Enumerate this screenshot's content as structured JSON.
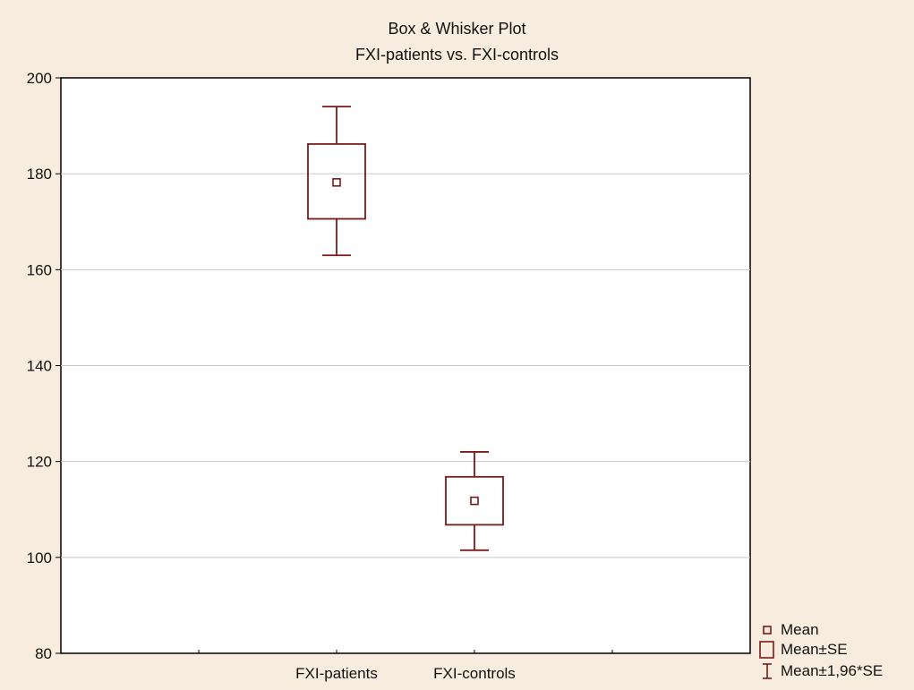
{
  "chart_data": {
    "type": "box",
    "title": "Box & Whisker Plot",
    "subtitle": "FXI-patients vs. FXI-controls",
    "categories": [
      "FXI-patients",
      "FXI-controls"
    ],
    "series": [
      {
        "category": "FXI-patients",
        "mean": 178.2,
        "se_low": 170.6,
        "se_high": 186.2,
        "ci_low": 163.0,
        "ci_high": 194.0
      },
      {
        "category": "FXI-controls",
        "mean": 111.8,
        "se_low": 106.8,
        "se_high": 116.8,
        "ci_low": 101.5,
        "ci_high": 122.0
      }
    ],
    "ylim": [
      80,
      200
    ],
    "yticks": [
      80,
      100,
      120,
      140,
      160,
      180,
      200
    ],
    "grid": true,
    "legend": {
      "placement": "bottom-right",
      "entries": [
        "Mean",
        "Mean±SE",
        "Mean±1,96*SE"
      ]
    },
    "colors": {
      "marker": "#7b1a1a",
      "background": "#f7ecde",
      "plot_area": "#ffffff",
      "grid": "#c8c8c8"
    }
  }
}
